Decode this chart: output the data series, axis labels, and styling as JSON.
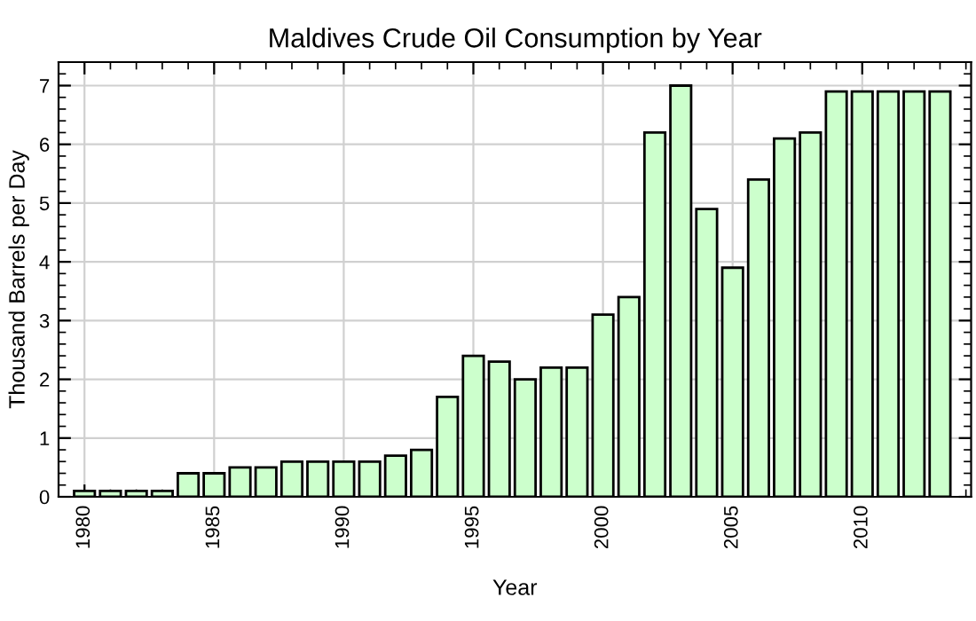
{
  "chart_data": {
    "type": "bar",
    "title": "Maldives Crude Oil Consumption by Year",
    "xlabel": "Year",
    "ylabel": "Thousand Barrels per Day",
    "x": [
      1980,
      1981,
      1982,
      1983,
      1984,
      1985,
      1986,
      1987,
      1988,
      1989,
      1990,
      1991,
      1992,
      1993,
      1994,
      1995,
      1996,
      1997,
      1998,
      1999,
      2000,
      2001,
      2002,
      2003,
      2004,
      2005,
      2006,
      2007,
      2008,
      2009,
      2010,
      2011,
      2012,
      2013
    ],
    "values": [
      0.1,
      0.1,
      0.1,
      0.1,
      0.4,
      0.4,
      0.5,
      0.5,
      0.6,
      0.6,
      0.6,
      0.6,
      0.7,
      0.8,
      1.7,
      2.4,
      2.3,
      2.0,
      2.2,
      2.2,
      3.1,
      3.4,
      6.2,
      7.0,
      4.9,
      3.9,
      5.4,
      6.1,
      6.2,
      6.9,
      6.9,
      6.9,
      6.9,
      6.9
    ],
    "color": "#ccffcc",
    "xlim": [
      1979,
      2014.2
    ],
    "ylim": [
      0,
      7.4
    ],
    "xticks": [
      1980,
      1985,
      1990,
      1995,
      2000,
      2005,
      2010
    ],
    "yticks": [
      0,
      1,
      2,
      3,
      4,
      5,
      6,
      7
    ],
    "grid": true
  }
}
